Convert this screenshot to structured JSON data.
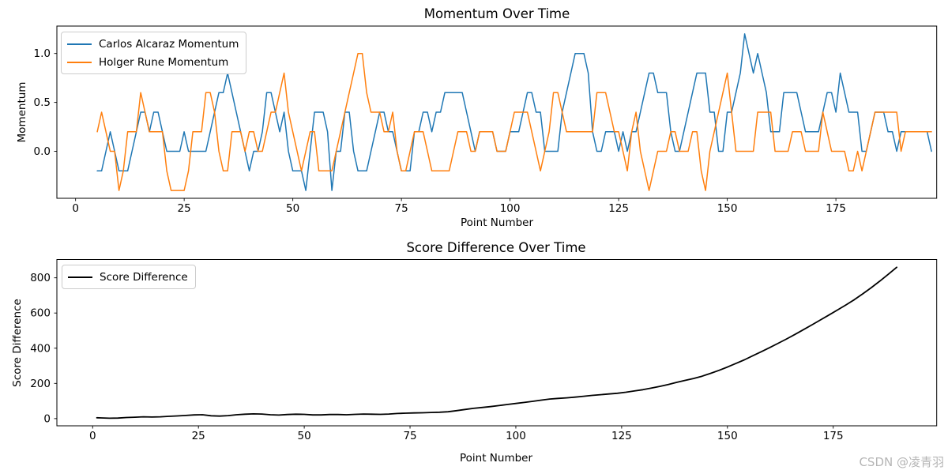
{
  "watermark": {
    "text": "CSDN @凌青羽",
    "color": "#b5b5b5"
  },
  "palette": {
    "alcaraz": "#1f77b4",
    "rune": "#ff7f0e",
    "score": "#000000",
    "axis": "#000000",
    "legend_border": "#cccccc"
  },
  "chart_data": [
    {
      "type": "line",
      "title": "Momentum Over Time",
      "xlabel": "Point Number",
      "ylabel": "Momentum",
      "xlim": [
        -4.3,
        198.2
      ],
      "ylim": [
        -0.48,
        1.28
      ],
      "xticks": [
        0,
        25,
        50,
        75,
        100,
        125,
        150,
        175
      ],
      "yticks": [
        0.0,
        0.5,
        1.0
      ],
      "yticklabels": [
        "0.0",
        "0.5",
        "1.0"
      ],
      "grid": false,
      "legend_position": "upper-left",
      "x_start": 5,
      "x_step": 1,
      "series": [
        {
          "name": "Carlos Alcaraz Momentum",
          "color": "#1f77b4",
          "width": 1.5,
          "values": [
            -0.2,
            -0.2,
            0.0,
            0.2,
            0.0,
            -0.2,
            -0.2,
            -0.2,
            0.0,
            0.2,
            0.4,
            0.4,
            0.2,
            0.4,
            0.4,
            0.2,
            0.0,
            0.0,
            0.0,
            0.0,
            0.2,
            0.0,
            0.0,
            0.0,
            0.0,
            0.0,
            0.2,
            0.4,
            0.6,
            0.6,
            0.8,
            0.6,
            0.4,
            0.2,
            0.0,
            -0.2,
            0.0,
            0.0,
            0.2,
            0.6,
            0.6,
            0.4,
            0.2,
            0.4,
            0.0,
            -0.2,
            -0.2,
            -0.2,
            -0.4,
            0.0,
            0.4,
            0.4,
            0.4,
            0.2,
            -0.4,
            0.0,
            0.0,
            0.4,
            0.4,
            0.0,
            -0.2,
            -0.2,
            -0.2,
            0.0,
            0.2,
            0.4,
            0.4,
            0.2,
            0.2,
            0.0,
            -0.2,
            -0.2,
            -0.2,
            0.2,
            0.2,
            0.4,
            0.4,
            0.2,
            0.4,
            0.4,
            0.6,
            0.6,
            0.6,
            0.6,
            0.6,
            0.4,
            0.2,
            0.0,
            0.2,
            0.2,
            0.2,
            0.2,
            0.0,
            0.0,
            0.0,
            0.2,
            0.2,
            0.2,
            0.4,
            0.6,
            0.6,
            0.4,
            0.4,
            0.0,
            0.0,
            0.0,
            0.0,
            0.4,
            0.6,
            0.8,
            1.0,
            1.0,
            1.0,
            0.8,
            0.2,
            0.0,
            0.0,
            0.2,
            0.2,
            0.2,
            0.0,
            0.2,
            0.0,
            0.2,
            0.2,
            0.4,
            0.6,
            0.8,
            0.8,
            0.6,
            0.6,
            0.6,
            0.2,
            0.0,
            0.0,
            0.2,
            0.4,
            0.6,
            0.8,
            0.8,
            0.8,
            0.4,
            0.4,
            0.0,
            0.0,
            0.4,
            0.4,
            0.6,
            0.8,
            1.2,
            1.0,
            0.8,
            1.0,
            0.8,
            0.6,
            0.2,
            0.2,
            0.2,
            0.6,
            0.6,
            0.6,
            0.6,
            0.4,
            0.2,
            0.2,
            0.2,
            0.2,
            0.4,
            0.6,
            0.6,
            0.4,
            0.8,
            0.6,
            0.4,
            0.4,
            0.4,
            0.0,
            0.0,
            0.2,
            0.4,
            0.4,
            0.4,
            0.2,
            0.2,
            0.0,
            0.2,
            0.2,
            0.2,
            0.2,
            0.2,
            0.2,
            0.2,
            0.0
          ]
        },
        {
          "name": "Holger Rune Momentum",
          "color": "#ff7f0e",
          "width": 1.5,
          "values": [
            0.2,
            0.4,
            0.2,
            0.0,
            0.0,
            -0.4,
            -0.2,
            0.2,
            0.2,
            0.2,
            0.6,
            0.4,
            0.2,
            0.2,
            0.2,
            0.2,
            -0.2,
            -0.4,
            -0.4,
            -0.4,
            -0.4,
            -0.2,
            0.2,
            0.2,
            0.2,
            0.6,
            0.6,
            0.4,
            0.0,
            -0.2,
            -0.2,
            0.2,
            0.2,
            0.2,
            0.0,
            0.2,
            0.2,
            0.0,
            0.0,
            0.2,
            0.4,
            0.4,
            0.6,
            0.8,
            0.4,
            0.2,
            0.0,
            -0.2,
            0.0,
            0.2,
            0.2,
            -0.2,
            -0.2,
            -0.2,
            -0.2,
            0.0,
            0.2,
            0.4,
            0.6,
            0.8,
            1.0,
            1.0,
            0.6,
            0.4,
            0.4,
            0.4,
            0.2,
            0.2,
            0.4,
            0.0,
            -0.2,
            -0.2,
            0.0,
            0.2,
            0.2,
            0.2,
            0.0,
            -0.2,
            -0.2,
            -0.2,
            -0.2,
            -0.2,
            0.0,
            0.2,
            0.2,
            0.2,
            0.0,
            0.0,
            0.2,
            0.2,
            0.2,
            0.2,
            0.0,
            0.0,
            0.0,
            0.2,
            0.4,
            0.4,
            0.4,
            0.4,
            0.2,
            0.0,
            -0.2,
            0.0,
            0.2,
            0.6,
            0.6,
            0.4,
            0.2,
            0.2,
            0.2,
            0.2,
            0.2,
            0.2,
            0.2,
            0.6,
            0.6,
            0.6,
            0.4,
            0.2,
            0.2,
            0.0,
            -0.2,
            0.2,
            0.4,
            0.0,
            -0.2,
            -0.4,
            -0.2,
            0.0,
            0.0,
            0.0,
            0.2,
            0.2,
            0.0,
            0.0,
            0.0,
            0.2,
            0.2,
            -0.2,
            -0.4,
            0.0,
            0.2,
            0.4,
            0.6,
            0.8,
            0.4,
            0.0,
            0.0,
            0.0,
            0.0,
            0.0,
            0.4,
            0.4,
            0.4,
            0.4,
            0.0,
            0.0,
            0.0,
            0.0,
            0.2,
            0.2,
            0.2,
            0.0,
            0.0,
            0.0,
            0.0,
            0.4,
            0.2,
            0.0,
            0.0,
            0.0,
            0.0,
            -0.2,
            -0.2,
            0.0,
            -0.2,
            0.0,
            0.2,
            0.4,
            0.4,
            0.4,
            0.4,
            0.4,
            0.4,
            0.0,
            0.2,
            0.2,
            0.2,
            0.2,
            0.2,
            0.2,
            0.2
          ]
        }
      ]
    },
    {
      "type": "line",
      "title": "Score Difference Over Time",
      "xlabel": "Point Number",
      "ylabel": "Score Difference",
      "xlim": [
        -8.45,
        199.45
      ],
      "ylim": [
        -41,
        904
      ],
      "xticks": [
        0,
        25,
        50,
        75,
        100,
        125,
        150,
        175
      ],
      "yticks": [
        0,
        200,
        400,
        600,
        800
      ],
      "yticklabels": [
        "0",
        "200",
        "400",
        "600",
        "800"
      ],
      "grid": false,
      "legend_position": "upper-left",
      "series": [
        {
          "name": "Score Difference",
          "color": "#000000",
          "width": 1.8,
          "points": [
            [
              1,
              5
            ],
            [
              2,
              4
            ],
            [
              4,
              2
            ],
            [
              6,
              3
            ],
            [
              8,
              6
            ],
            [
              10,
              8
            ],
            [
              12,
              10
            ],
            [
              14,
              9
            ],
            [
              16,
              10
            ],
            [
              18,
              13
            ],
            [
              20,
              15
            ],
            [
              22,
              18
            ],
            [
              24,
              21
            ],
            [
              26,
              22
            ],
            [
              28,
              16
            ],
            [
              30,
              14
            ],
            [
              32,
              17
            ],
            [
              34,
              22
            ],
            [
              36,
              25
            ],
            [
              38,
              27
            ],
            [
              40,
              26
            ],
            [
              42,
              22
            ],
            [
              44,
              20
            ],
            [
              46,
              23
            ],
            [
              48,
              25
            ],
            [
              50,
              24
            ],
            [
              52,
              21
            ],
            [
              54,
              21
            ],
            [
              56,
              23
            ],
            [
              58,
              23
            ],
            [
              60,
              22
            ],
            [
              62,
              24
            ],
            [
              64,
              26
            ],
            [
              66,
              25
            ],
            [
              68,
              24
            ],
            [
              70,
              26
            ],
            [
              72,
              29
            ],
            [
              74,
              31
            ],
            [
              76,
              32
            ],
            [
              78,
              33
            ],
            [
              80,
              35
            ],
            [
              82,
              36
            ],
            [
              84,
              39
            ],
            [
              86,
              45
            ],
            [
              88,
              52
            ],
            [
              90,
              58
            ],
            [
              92,
              63
            ],
            [
              94,
              68
            ],
            [
              96,
              74
            ],
            [
              98,
              80
            ],
            [
              100,
              86
            ],
            [
              102,
              92
            ],
            [
              104,
              98
            ],
            [
              106,
              105
            ],
            [
              108,
              111
            ],
            [
              110,
              115
            ],
            [
              112,
              118
            ],
            [
              114,
              122
            ],
            [
              116,
              127
            ],
            [
              118,
              132
            ],
            [
              120,
              136
            ],
            [
              122,
              140
            ],
            [
              124,
              144
            ],
            [
              126,
              150
            ],
            [
              128,
              157
            ],
            [
              130,
              164
            ],
            [
              132,
              173
            ],
            [
              134,
              183
            ],
            [
              136,
              194
            ],
            [
              138,
              206
            ],
            [
              140,
              217
            ],
            [
              142,
              228
            ],
            [
              144,
              241
            ],
            [
              146,
              257
            ],
            [
              148,
              274
            ],
            [
              150,
              293
            ],
            [
              152,
              313
            ],
            [
              154,
              334
            ],
            [
              156,
              357
            ],
            [
              158,
              380
            ],
            [
              160,
              404
            ],
            [
              162,
              428
            ],
            [
              164,
              453
            ],
            [
              166,
              479
            ],
            [
              168,
              506
            ],
            [
              170,
              533
            ],
            [
              172,
              561
            ],
            [
              174,
              589
            ],
            [
              176,
              617
            ],
            [
              178,
              646
            ],
            [
              180,
              676
            ],
            [
              182,
              709
            ],
            [
              184,
              744
            ],
            [
              186,
              781
            ],
            [
              188,
              820
            ],
            [
              190,
              860
            ]
          ]
        }
      ]
    }
  ]
}
